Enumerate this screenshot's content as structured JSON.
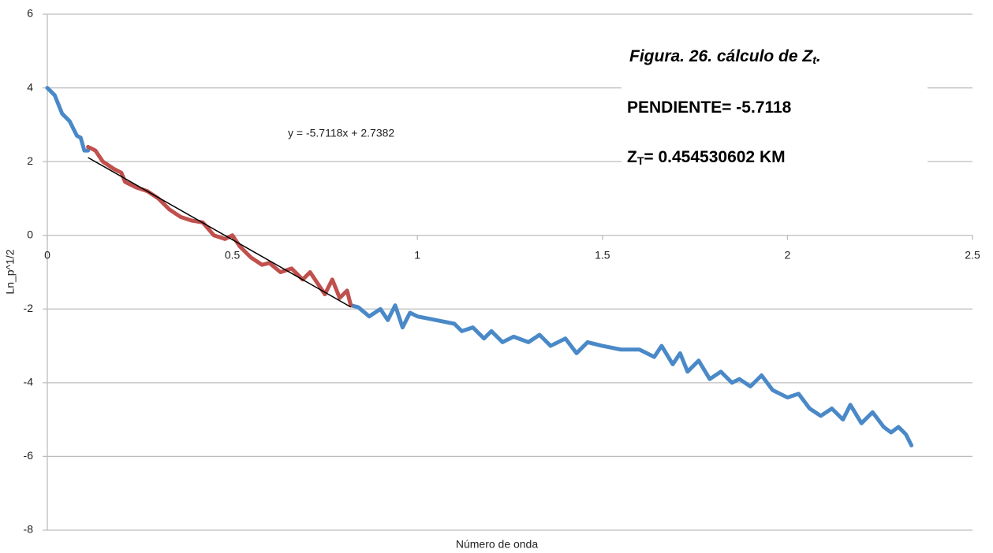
{
  "chart_data": {
    "type": "line",
    "x_label": "Número de onda",
    "y_label": "Ln_p^1/2",
    "xlim": [
      0,
      2.5
    ],
    "xticks": [
      0,
      0.5,
      1,
      1.5,
      2,
      2.5
    ],
    "ylim": [
      -8,
      6
    ],
    "yticks": [
      -8,
      -6,
      -4,
      -2,
      0,
      2,
      4,
      6
    ],
    "grid": true,
    "series": [
      {
        "color": "#4a89c8",
        "x": [
          0,
          0.02,
          0.04,
          0.06,
          0.08,
          0.09,
          0.1,
          0.11,
          0.5,
          0.82,
          0.84,
          0.87,
          0.9,
          0.92,
          0.94,
          0.96,
          0.98,
          1.0,
          1.05,
          1.1,
          1.12,
          1.15,
          1.18,
          1.2,
          1.23,
          1.26,
          1.3,
          1.33,
          1.36,
          1.4,
          1.43,
          1.46,
          1.5,
          1.55,
          1.6,
          1.64,
          1.66,
          1.69,
          1.71,
          1.73,
          1.76,
          1.79,
          1.82,
          1.85,
          1.87,
          1.9,
          1.93,
          1.96,
          2.0,
          2.03,
          2.06,
          2.09,
          2.12,
          2.15,
          2.17,
          2.2,
          2.23,
          2.26,
          2.28,
          2.3,
          2.32,
          2.335
        ],
        "values": [
          4.0,
          3.8,
          3.3,
          3.1,
          2.7,
          2.65,
          2.3,
          2.3,
          null,
          -1.9,
          -1.95,
          -2.2,
          -2.0,
          -2.3,
          -1.9,
          -2.5,
          -2.1,
          -2.2,
          -2.3,
          -2.4,
          -2.6,
          -2.5,
          -2.8,
          -2.6,
          -2.9,
          -2.75,
          -2.9,
          -2.7,
          -3.0,
          -2.8,
          -3.2,
          -2.9,
          -3.0,
          -3.1,
          -3.1,
          -3.3,
          -3.0,
          -3.5,
          -3.2,
          -3.7,
          -3.4,
          -3.9,
          -3.7,
          -4.0,
          -3.9,
          -4.1,
          -3.8,
          -4.2,
          -4.4,
          -4.3,
          -4.7,
          -4.9,
          -4.7,
          -5.0,
          -4.6,
          -5.1,
          -4.8,
          -5.2,
          -5.35,
          -5.2,
          -5.4,
          -5.7
        ]
      },
      {
        "color": "#c0504d",
        "x": [
          0.11,
          0.13,
          0.15,
          0.18,
          0.2,
          0.21,
          0.24,
          0.27,
          0.3,
          0.33,
          0.36,
          0.39,
          0.42,
          0.45,
          0.48,
          0.5,
          0.52,
          0.55,
          0.58,
          0.6,
          0.63,
          0.66,
          0.69,
          0.71,
          0.73,
          0.75,
          0.77,
          0.79,
          0.81,
          0.82
        ],
        "values": [
          2.4,
          2.3,
          2.0,
          1.8,
          1.7,
          1.45,
          1.3,
          1.2,
          1.0,
          0.7,
          0.5,
          0.4,
          0.35,
          0.0,
          -0.1,
          0.0,
          -0.3,
          -0.6,
          -0.8,
          -0.75,
          -1.0,
          -0.9,
          -1.2,
          -1.0,
          -1.3,
          -1.6,
          -1.2,
          -1.7,
          -1.5,
          -1.9
        ]
      }
    ],
    "trendline": {
      "slope": -5.7118,
      "intercept": 2.7382,
      "x": [
        0.11,
        0.82
      ],
      "color": "#000000",
      "label": "y = -5.7118x + 2.7382"
    },
    "annotations": [
      {
        "text": "Figura. 26. cálculo de Z",
        "sub": "t",
        "after": "."
      },
      {
        "text": "PENDIENTE= -5.7118"
      },
      {
        "text": "Z",
        "sub": "T",
        "after": "= 0.454530602 KM"
      }
    ]
  }
}
